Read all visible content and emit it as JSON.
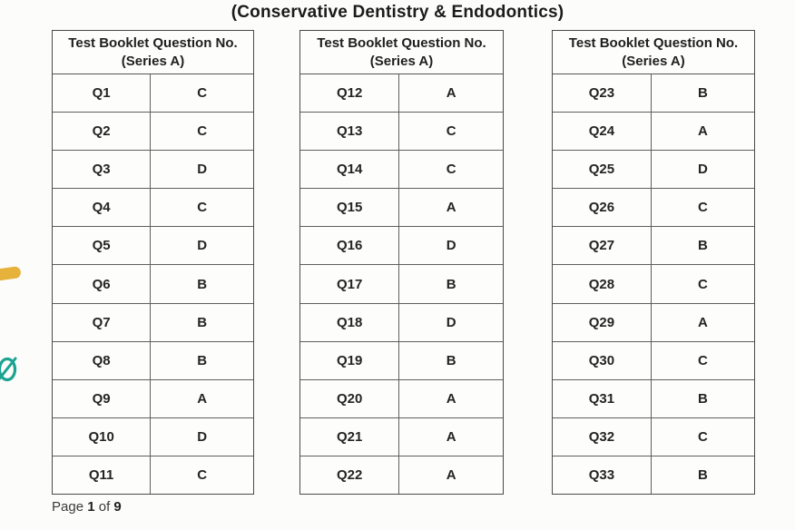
{
  "title": "(Conservative Dentistry & Endodontics)",
  "tables": [
    {
      "header": {
        "line1": "Test Booklet Question No.",
        "line2": "(Series A)"
      },
      "rows": [
        {
          "q": "Q1",
          "a": "C"
        },
        {
          "q": "Q2",
          "a": "C"
        },
        {
          "q": "Q3",
          "a": "D"
        },
        {
          "q": "Q4",
          "a": "C"
        },
        {
          "q": "Q5",
          "a": "D"
        },
        {
          "q": "Q6",
          "a": "B"
        },
        {
          "q": "Q7",
          "a": "B"
        },
        {
          "q": "Q8",
          "a": "B"
        },
        {
          "q": "Q9",
          "a": "A"
        },
        {
          "q": "Q10",
          "a": "D"
        },
        {
          "q": "Q11",
          "a": "C"
        }
      ]
    },
    {
      "header": {
        "line1": "Test Booklet Question No.",
        "line2": "(Series A)"
      },
      "rows": [
        {
          "q": "Q12",
          "a": "A"
        },
        {
          "q": "Q13",
          "a": "C"
        },
        {
          "q": "Q14",
          "a": "C"
        },
        {
          "q": "Q15",
          "a": "A"
        },
        {
          "q": "Q16",
          "a": "D"
        },
        {
          "q": "Q17",
          "a": "B"
        },
        {
          "q": "Q18",
          "a": "D"
        },
        {
          "q": "Q19",
          "a": "B"
        },
        {
          "q": "Q20",
          "a": "A"
        },
        {
          "q": "Q21",
          "a": "A"
        },
        {
          "q": "Q22",
          "a": "A"
        }
      ]
    },
    {
      "header": {
        "line1": "Test Booklet Question No.",
        "line2": "(Series A)"
      },
      "rows": [
        {
          "q": "Q23",
          "a": "B"
        },
        {
          "q": "Q24",
          "a": "A"
        },
        {
          "q": "Q25",
          "a": "D"
        },
        {
          "q": "Q26",
          "a": "C"
        },
        {
          "q": "Q27",
          "a": "B"
        },
        {
          "q": "Q28",
          "a": "C"
        },
        {
          "q": "Q29",
          "a": "A"
        },
        {
          "q": "Q30",
          "a": "C"
        },
        {
          "q": "Q31",
          "a": "B"
        },
        {
          "q": "Q32",
          "a": "C"
        },
        {
          "q": "Q33",
          "a": "B"
        }
      ]
    }
  ],
  "footer": {
    "label_page": "Page",
    "current_page": "1",
    "label_of": "of",
    "total_pages": "9"
  },
  "annotations": {
    "yellow_mark_color": "#e6b23b",
    "teal_mark_color": "#1ba392"
  }
}
